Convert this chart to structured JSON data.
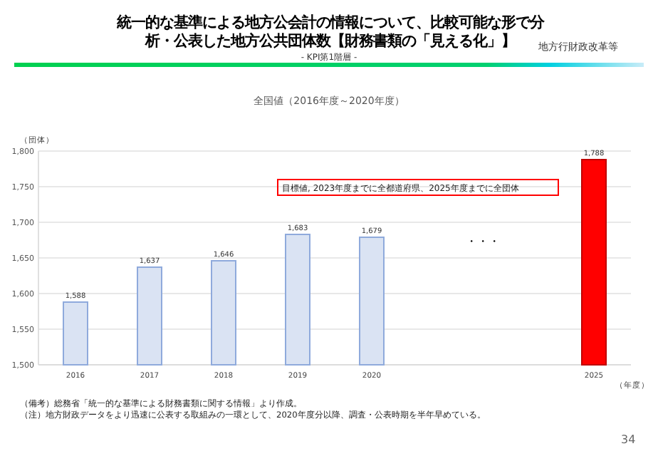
{
  "chart_data": {
    "type": "bar",
    "title": "統一的な基準による地方公会計の情報について、比較可能な形で分析・公表した地方公共団体数【財務書類の「見える化」】",
    "subtitle": "- KPI第1階層 -",
    "ylabel": "（団体）",
    "xlabel": "（年度）",
    "categories": [
      "2016",
      "2017",
      "2018",
      "2019",
      "2020",
      null,
      null,
      "2025"
    ],
    "values": [
      1588,
      1637,
      1646,
      1683,
      1679,
      null,
      null,
      1788
    ],
    "value_labels": [
      "1,588",
      "1,637",
      "1,646",
      "1,683",
      "1,679",
      null,
      null,
      "1,788"
    ],
    "colors": [
      "#dae3f3",
      "#dae3f3",
      "#dae3f3",
      "#dae3f3",
      "#dae3f3",
      null,
      null,
      "#ff0000"
    ],
    "ylim": [
      1500,
      1800
    ],
    "yticks": [
      {
        "value": 1500,
        "label": "1,500"
      },
      {
        "value": 1550,
        "label": "1,550"
      },
      {
        "value": 1600,
        "label": "1,600"
      },
      {
        "value": 1650,
        "label": "1,650"
      },
      {
        "value": 1700,
        "label": "1,700"
      },
      {
        "value": 1750,
        "label": "1,750"
      },
      {
        "value": 1800,
        "label": "1,800"
      }
    ],
    "grid": "y",
    "annotations": [
      "全国値（2016年度～2020年度）",
      "目標値, 2023年度までに全都道府県、2025年度までに全団体",
      "・・・",
      "（備考）総務省「統一的な基準による財務書類に関する情報」より作成。",
      "（注）地方財政データをより迅速に公表する取組みの一環として、2020年度分以降、調査・公表時期を半年早めている。",
      "地方行財政改革等",
      "34"
    ]
  }
}
